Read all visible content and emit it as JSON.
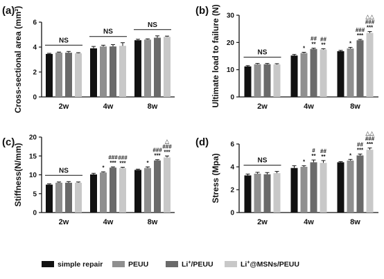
{
  "colors": {
    "simple_repair": "#111111",
    "PEUU": "#8f8f8f",
    "Li_PEUU": "#6a6a6a",
    "Li_MSNs_PEUU": "#c8c8c8",
    "axis": "#111111"
  },
  "legend": {
    "placement": "bottom",
    "items": [
      {
        "label": "simple repair",
        "sup": "",
        "post": "",
        "color_key": "simple_repair"
      },
      {
        "label": "PEUU",
        "sup": "",
        "post": "",
        "color_key": "PEUU"
      },
      {
        "label": "Li",
        "sup": "+",
        "post": "/PEUU",
        "color_key": "Li_PEUU"
      },
      {
        "label": "Li",
        "sup": "+",
        "post": "@MSNs/PEUU",
        "color_key": "Li_MSNs_PEUU"
      }
    ]
  },
  "chart_data": [
    {
      "panel": "(a)",
      "type": "bar",
      "ylabel": "Cross-sectional area (mm²)",
      "ylim": [
        0,
        6
      ],
      "yticks": [
        0,
        2,
        4,
        6
      ],
      "categories": [
        "2w",
        "4w",
        "8w"
      ],
      "series": [
        {
          "name": "simple repair",
          "values": [
            3.45,
            3.9,
            4.55
          ],
          "errors": [
            0.05,
            0.15,
            0.08
          ]
        },
        {
          "name": "PEUU",
          "values": [
            3.55,
            4.05,
            4.6
          ],
          "errors": [
            0.05,
            0.1,
            0.06
          ]
        },
        {
          "name": "Li+/PEUU",
          "values": [
            3.55,
            4.05,
            4.75
          ],
          "errors": [
            0.1,
            0.15,
            0.15
          ]
        },
        {
          "name": "Li+@MSNs/PEUU",
          "values": [
            3.5,
            4.1,
            4.82
          ],
          "errors": [
            0.05,
            0.25,
            0.06
          ]
        }
      ],
      "ns_groups": [
        {
          "group": 0,
          "label": "NS"
        },
        {
          "group": 1,
          "label": "NS"
        },
        {
          "group": 2,
          "label": "NS"
        }
      ],
      "annotations": []
    },
    {
      "panel": "(b)",
      "type": "bar",
      "ylabel": "Ultimate load to failure (N)",
      "ylim": [
        0,
        30
      ],
      "yticks": [
        0,
        10,
        20,
        30
      ],
      "categories": [
        "2w",
        "4w",
        "8w"
      ],
      "series": [
        {
          "name": "simple repair",
          "values": [
            11.2,
            15.2,
            16.8
          ],
          "errors": [
            0.3,
            0.4,
            0.3
          ]
        },
        {
          "name": "PEUU",
          "values": [
            12.0,
            16.1,
            17.8
          ],
          "errors": [
            0.3,
            0.3,
            0.4
          ]
        },
        {
          "name": "Li+/PEUU",
          "values": [
            12.0,
            17.6,
            20.8
          ],
          "errors": [
            0.3,
            0.3,
            0.3
          ]
        },
        {
          "name": "Li+@MSNs/PEUU",
          "values": [
            11.9,
            17.4,
            23.5
          ],
          "errors": [
            0.3,
            0.3,
            0.5
          ]
        }
      ],
      "ns_groups": [
        {
          "group": 0,
          "label": "NS"
        }
      ],
      "annotations": [
        {
          "group": 1,
          "series": 1,
          "lines": [
            "*"
          ]
        },
        {
          "group": 1,
          "series": 2,
          "lines": [
            "##",
            "**"
          ]
        },
        {
          "group": 1,
          "series": 3,
          "lines": [
            "##",
            "**"
          ]
        },
        {
          "group": 2,
          "series": 1,
          "lines": [
            "*"
          ]
        },
        {
          "group": 2,
          "series": 2,
          "lines": [
            "###",
            "***"
          ]
        },
        {
          "group": 2,
          "series": 3,
          "lines": [
            "△△",
            "###",
            "***"
          ]
        }
      ]
    },
    {
      "panel": "(c)",
      "type": "bar",
      "ylabel": "Stiffness(N/mm)",
      "ylim": [
        0,
        20
      ],
      "yticks": [
        0,
        5,
        10,
        15,
        20
      ],
      "categories": [
        "2w",
        "4w",
        "8w"
      ],
      "series": [
        {
          "name": "simple repair",
          "values": [
            7.4,
            10.1,
            11.3
          ],
          "errors": [
            0.2,
            0.3,
            0.2
          ]
        },
        {
          "name": "PEUU",
          "values": [
            7.9,
            10.6,
            11.8
          ],
          "errors": [
            0.2,
            0.2,
            0.3
          ]
        },
        {
          "name": "Li+/PEUU",
          "values": [
            7.9,
            11.9,
            13.8
          ],
          "errors": [
            0.3,
            0.2,
            0.2
          ]
        },
        {
          "name": "Li+@MSNs/PEUU",
          "values": [
            7.9,
            11.8,
            14.6
          ],
          "errors": [
            0.2,
            0.2,
            0.4
          ]
        }
      ],
      "ns_groups": [
        {
          "group": 0,
          "label": "NS"
        }
      ],
      "annotations": [
        {
          "group": 1,
          "series": 1,
          "lines": [
            "*"
          ]
        },
        {
          "group": 1,
          "series": 2,
          "lines": [
            "###",
            "***"
          ]
        },
        {
          "group": 1,
          "series": 3,
          "lines": [
            "###",
            "***"
          ]
        },
        {
          "group": 2,
          "series": 1,
          "lines": [
            "*"
          ]
        },
        {
          "group": 2,
          "series": 2,
          "lines": [
            "###",
            "***"
          ]
        },
        {
          "group": 2,
          "series": 3,
          "lines": [
            "△",
            "###",
            "***"
          ]
        }
      ]
    },
    {
      "panel": "(d)",
      "type": "bar",
      "ylabel": "Stress (Mpa)",
      "ylim": [
        0,
        6
      ],
      "yticks": [
        0,
        2,
        4,
        6
      ],
      "categories": [
        "2w",
        "4w",
        "8w"
      ],
      "series": [
        {
          "name": "simple repair",
          "values": [
            3.25,
            3.9,
            4.4
          ],
          "errors": [
            0.12,
            0.2,
            0.06
          ]
        },
        {
          "name": "PEUU",
          "values": [
            3.4,
            4.0,
            4.55
          ],
          "errors": [
            0.12,
            0.1,
            0.1
          ]
        },
        {
          "name": "Li+/PEUU",
          "values": [
            3.35,
            4.4,
            5.0
          ],
          "errors": [
            0.15,
            0.2,
            0.12
          ]
        },
        {
          "name": "Li+@MSNs/PEUU",
          "values": [
            3.45,
            4.35,
            5.5
          ],
          "errors": [
            0.15,
            0.2,
            0.15
          ]
        }
      ],
      "ns_groups": [
        {
          "group": 0,
          "label": "NS"
        }
      ],
      "annotations": [
        {
          "group": 1,
          "series": 1,
          "lines": [
            "*"
          ]
        },
        {
          "group": 1,
          "series": 2,
          "lines": [
            "#",
            "**"
          ]
        },
        {
          "group": 1,
          "series": 3,
          "lines": [
            "##",
            "**"
          ]
        },
        {
          "group": 2,
          "series": 1,
          "lines": [
            "*"
          ]
        },
        {
          "group": 2,
          "series": 2,
          "lines": [
            "##",
            "***"
          ]
        },
        {
          "group": 2,
          "series": 3,
          "lines": [
            "△△",
            "###",
            "***"
          ]
        }
      ]
    }
  ]
}
